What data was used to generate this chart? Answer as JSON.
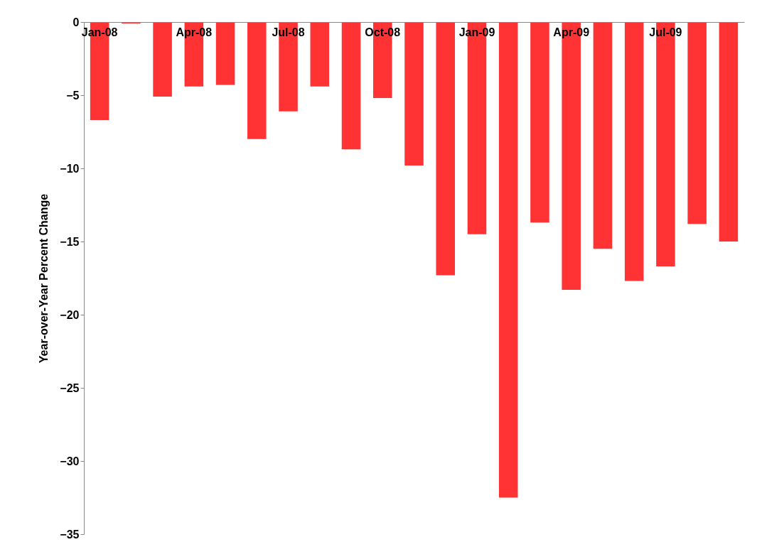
{
  "chart_data": {
    "type": "bar",
    "ylabel": "Year-over-Year Percent Change",
    "categories": [
      "Jan-08",
      null,
      null,
      "Apr-08",
      null,
      null,
      "Jul-08",
      null,
      null,
      "Oct-08",
      null,
      null,
      "Jan-09",
      null,
      null,
      "Apr-09",
      null,
      null,
      "Jul-09",
      null,
      null
    ],
    "values": [
      -6.7,
      -0.1,
      -5.1,
      -4.4,
      -4.3,
      -8.0,
      -6.1,
      -4.4,
      -8.7,
      -5.2,
      -9.8,
      -17.3,
      -14.5,
      -32.5,
      -13.7,
      -18.3,
      -15.5,
      -17.7,
      -16.7,
      -13.8,
      -15.0
    ],
    "color": "#ff3333",
    "ylim": [
      -35,
      0
    ],
    "yticks": [
      0,
      -5,
      -10,
      -15,
      -20,
      -25,
      -30,
      -35
    ],
    "grid": false
  }
}
